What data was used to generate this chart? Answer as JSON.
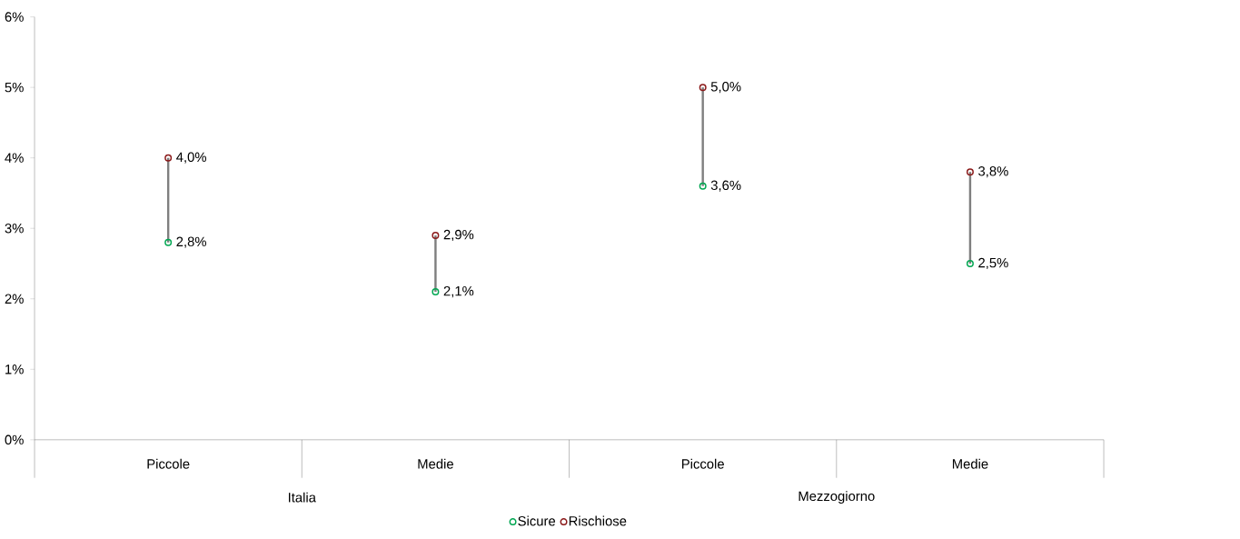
{
  "chart_data": {
    "type": "scatter",
    "categories": [
      "Piccole",
      "Medie",
      "Piccole",
      "Medie"
    ],
    "annotations": [
      "Italia",
      "Mezzogiorno"
    ],
    "ylim": [
      0,
      6
    ],
    "yticks": [
      {
        "value": 0,
        "label": "0%"
      },
      {
        "value": 1,
        "label": "1%"
      },
      {
        "value": 2,
        "label": "2%"
      },
      {
        "value": 3,
        "label": "3%"
      },
      {
        "value": 4,
        "label": "4%"
      },
      {
        "value": 5,
        "label": "5%"
      },
      {
        "value": 6,
        "label": "6%"
      }
    ],
    "marker": "circle",
    "legend": "bottom",
    "series": [
      {
        "type": "bar",
        "color": "#7f7f7f",
        "base": [
          2.8,
          2.1,
          3.6,
          2.5
        ],
        "values": [
          1.2,
          0.8,
          1.4,
          1.3
        ]
      },
      {
        "name": "Sicure",
        "color": "#00a651",
        "values": [
          2.8,
          2.1,
          3.6,
          2.5
        ],
        "value_labels": [
          "2,8%",
          "2,1%",
          "3,6%",
          "2,5%"
        ]
      },
      {
        "name": "Rischiose",
        "color": "#8b1a1a",
        "values": [
          4.0,
          2.9,
          5.0,
          3.8
        ],
        "value_labels": [
          "4,0%",
          "2,9%",
          "5,0%",
          "3,8%"
        ]
      }
    ]
  }
}
